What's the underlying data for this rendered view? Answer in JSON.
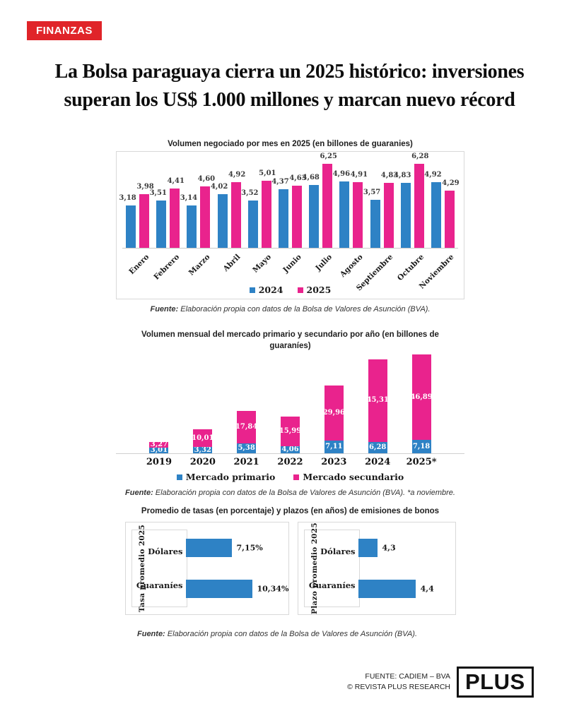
{
  "badge": {
    "label": "FINANZAS"
  },
  "headline": {
    "line1": "La Bolsa paraguaya cierra un 2025 histórico: inversiones",
    "line2": "superan los US$ 1.000 millones y marcan nuevo récord"
  },
  "colors": {
    "badge_red": "#e02429",
    "blue": "#2e82c5",
    "pink": "#e9238d",
    "border_gray": "#d9d9d9"
  },
  "chart_data": [
    {
      "type": "bar",
      "title": "Volumen negociado por mes en 2025 (en billones de guaranies)",
      "categories": [
        "Enero",
        "Febrero",
        "Marzo",
        "Abril",
        "Mayo",
        "Junio",
        "Julio",
        "Agosto",
        "Septiembre",
        "Octubre",
        "Noviembre"
      ],
      "series": [
        {
          "name": "2024",
          "color": "#2e82c5",
          "values": [
            3.18,
            3.51,
            3.14,
            4.02,
            3.52,
            4.37,
            4.68,
            4.96,
            3.57,
            4.83,
            4.92
          ],
          "labels": [
            "3,18",
            "3,51",
            "3,14",
            "4,02",
            "3,52",
            "4,37",
            "4,68",
            "4,96",
            "3,57",
            "4,83",
            "4,92"
          ]
        },
        {
          "name": "2025",
          "color": "#e9238d",
          "values": [
            3.98,
            4.41,
            4.6,
            4.92,
            5.01,
            4.63,
            6.25,
            4.91,
            4.83,
            6.28,
            4.29
          ],
          "labels": [
            "3,98",
            "4,41",
            "4,60",
            "4,92",
            "5,01",
            "4,63",
            "6,25",
            "4,91",
            "4,83",
            "6,28",
            "4,29"
          ]
        }
      ],
      "ylim": [
        0,
        7
      ],
      "legend_position": "bottom",
      "grid": false,
      "source": {
        "label": "Fuente:",
        "text": " Elaboración propia con datos de la Bolsa de Valores de Asunción (BVA)."
      }
    },
    {
      "type": "bar-stacked",
      "title": "Volumen mensual del mercado primario  y secundario por año (en billones de guaraníes)",
      "categories": [
        "2019",
        "2020",
        "2021",
        "2022",
        "2023",
        "2024",
        "2025*"
      ],
      "series": [
        {
          "name": "Mercado primario",
          "color": "#2e82c5",
          "values": [
            3.01,
            3.32,
            5.38,
            4.06,
            7.11,
            6.28,
            7.18
          ],
          "labels": [
            "3,01",
            "3,32",
            "5,38",
            "4,06",
            "7,11",
            "6,28",
            "7,18"
          ]
        },
        {
          "name": "Mercado secundario",
          "color": "#e9238d",
          "values": [
            3.27,
            10.01,
            17.84,
            15.99,
            29.96,
            45.31,
            46.89
          ],
          "labels": [
            "3,27",
            "10,01",
            "17,84",
            "15,99",
            "29,96",
            "45,31",
            "46,89"
          ]
        }
      ],
      "ylim": [
        0,
        55
      ],
      "legend_position": "bottom",
      "grid": false,
      "source": {
        "label": "Fuente:",
        "text": " Elaboración propia con datos de la Bolsa de Valores de Asunción (BVA). *a noviembre."
      }
    },
    {
      "type": "hbar-pair",
      "title": "Promedio de tasas (en porcentaje) y plazos (en años) de emisiones de bonos",
      "bar_color": "#2e82c5",
      "panels": [
        {
          "axis_label": "Tasa promedio 2025",
          "categories": [
            "Dólares",
            "Guaraníes"
          ],
          "values": [
            7.15,
            10.34
          ],
          "labels": [
            "7,15%",
            "10,34%"
          ],
          "xmin": 0,
          "xmax": 17.6
        },
        {
          "axis_label": "Plazo promedio 2025",
          "categories": [
            "Dólares",
            "Guaraníes"
          ],
          "values": [
            4.3,
            4.4
          ],
          "labels": [
            "4,3",
            "4,4"
          ],
          "xmin": 4.25,
          "xmax": 4.47
        }
      ],
      "source": {
        "label": "Fuente:",
        "text": " Elaboración propia con datos de la Bolsa de Valores de Asunción (BVA)."
      }
    }
  ],
  "footer": {
    "source_line1": "FUENTE: CADIEM – BVA",
    "source_line2": "© REVISTA PLUS RESEARCH",
    "logo": "PLUS"
  }
}
